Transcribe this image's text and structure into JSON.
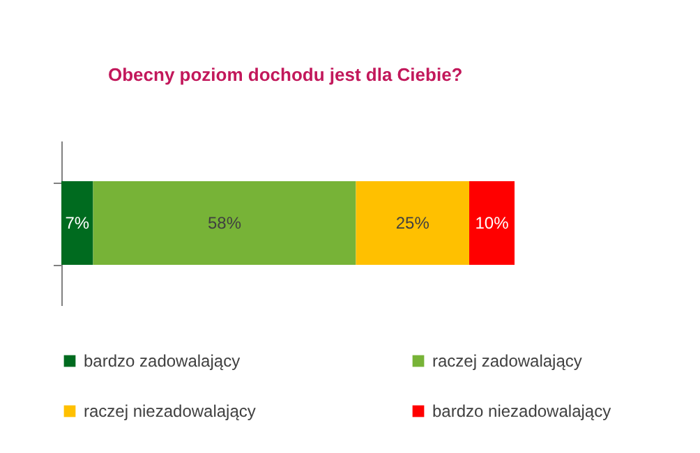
{
  "chart_data": {
    "type": "bar",
    "orientation": "horizontal",
    "stacked": true,
    "title": "Obecny poziom dochodu jest dla Ciebie?",
    "categories": [
      null
    ],
    "series": [
      {
        "name": "bardzo zadowalający",
        "color": "#006b1f",
        "values": [
          7
        ],
        "value_labels": [
          "7%"
        ]
      },
      {
        "name": "raczej zadowalający",
        "color": "#77b337",
        "values": [
          58
        ],
        "value_labels": [
          "58%"
        ]
      },
      {
        "name": "raczej niezadowalający",
        "color": "#ffc000",
        "values": [
          25
        ],
        "value_labels": [
          "25%"
        ]
      },
      {
        "name": "bardzo niezadowalający",
        "color": "#ff0000",
        "values": [
          10
        ],
        "value_labels": [
          "10%"
        ]
      }
    ],
    "legend": "bottom",
    "grid": false,
    "tick_labels": false
  }
}
